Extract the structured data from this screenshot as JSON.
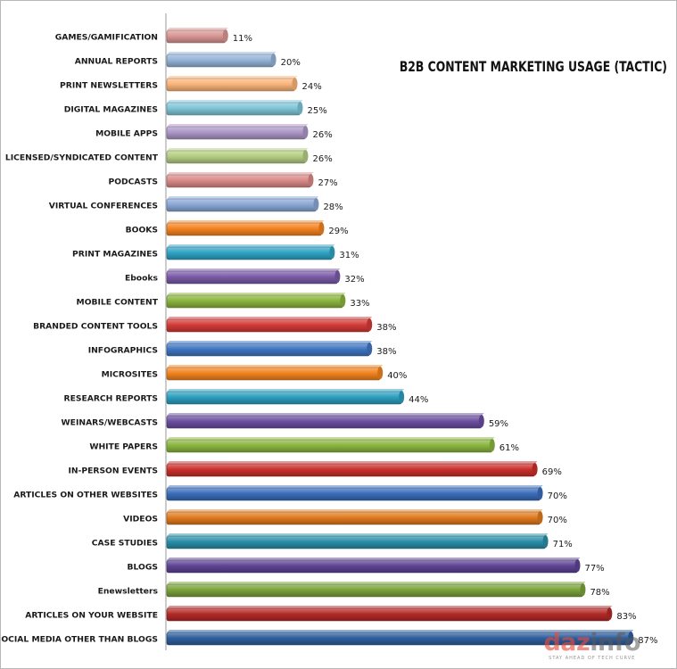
{
  "chart_data": {
    "type": "bar",
    "orientation": "horizontal",
    "title": "B2B CONTENT MARKETING USAGE (TACTIC)",
    "xlabel": "",
    "ylabel": "",
    "xlim": [
      0,
      100
    ],
    "grid": false,
    "categories": [
      "GAMES/GAMIFICATION",
      "ANNUAL REPORTS",
      "PRINT NEWSLETTERS",
      "DIGITAL MAGAZINES",
      "MOBILE APPS",
      "LICENSED/SYNDICATED CONTENT",
      "PODCASTS",
      "VIRTUAL CONFERENCES",
      "BOOKS",
      "PRINT MAGAZINES",
      "Ebooks",
      "MOBILE CONTENT",
      "BRANDED CONTENT TOOLS",
      "INFOGRAPHICS",
      "MICROSITES",
      "RESEARCH REPORTS",
      "WEINARS/WEBCASTS",
      "WHITE PAPERS",
      "IN-PERSON EVENTS",
      "ARTICLES ON OTHER WEBSITES",
      "VIDEOS",
      "CASE STUDIES",
      "BLOGS",
      "Enewsletters",
      "ARTICLES ON YOUR WEBSITE",
      "SOCIAL MEDIA OTHER THAN BLOGS"
    ],
    "values": [
      11,
      20,
      24,
      25,
      26,
      26,
      27,
      28,
      29,
      31,
      32,
      33,
      38,
      38,
      40,
      44,
      59,
      61,
      69,
      70,
      70,
      71,
      77,
      78,
      83,
      87
    ],
    "value_labels": [
      "11%",
      "20%",
      "24%",
      "25%",
      "26%",
      "26%",
      "27%",
      "28%",
      "29%",
      "31%",
      "32%",
      "33%",
      "38%",
      "38%",
      "40%",
      "44%",
      "59%",
      "61%",
      "69%",
      "70%",
      "70%",
      "71%",
      "77%",
      "78%",
      "83%",
      "87%"
    ],
    "bar_colors": [
      "#d99694",
      "#95b3d7",
      "#fab47a",
      "#7fc5d6",
      "#ac97c6",
      "#b4cd83",
      "#d98a88",
      "#8aa7d4",
      "#f48221",
      "#2fa3c4",
      "#7a5aa8",
      "#8ab43d",
      "#d23a36",
      "#3f76c2",
      "#f2841f",
      "#2b9fbf",
      "#6b4ea0",
      "#8ab53f",
      "#c9302c",
      "#3a6dba",
      "#e07a1e",
      "#2a8ea8",
      "#5e4494",
      "#7aa33a",
      "#b32a28",
      "#2f5e9e"
    ]
  },
  "watermark": {
    "logo_a": "daz",
    "logo_b": "info",
    "tagline": "STAY AHEAD OF TECH CURVE"
  }
}
